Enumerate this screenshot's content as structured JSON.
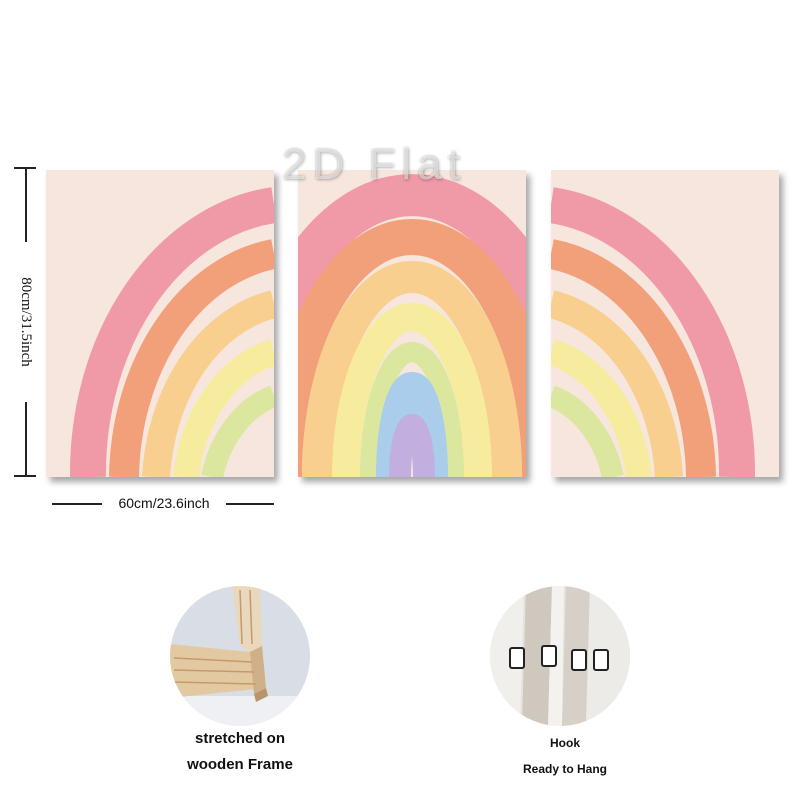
{
  "watermark": "2D Flat",
  "dimensions": {
    "height_label": "80cm/31.5inch",
    "width_label": "60cm/23.6inch"
  },
  "artwork": {
    "panels": 3,
    "band_colors": [
      "#ef9aa6",
      "#f2a07a",
      "#f8cf8e",
      "#f7ec9e",
      "#dbe79e",
      "#a9cdea",
      "#c3aee0"
    ],
    "background": "#f6e6de"
  },
  "features": [
    {
      "line1": "stretched on",
      "line2": "wooden Frame"
    },
    {
      "line1": "Hook",
      "line2": "Ready to Hang"
    }
  ]
}
